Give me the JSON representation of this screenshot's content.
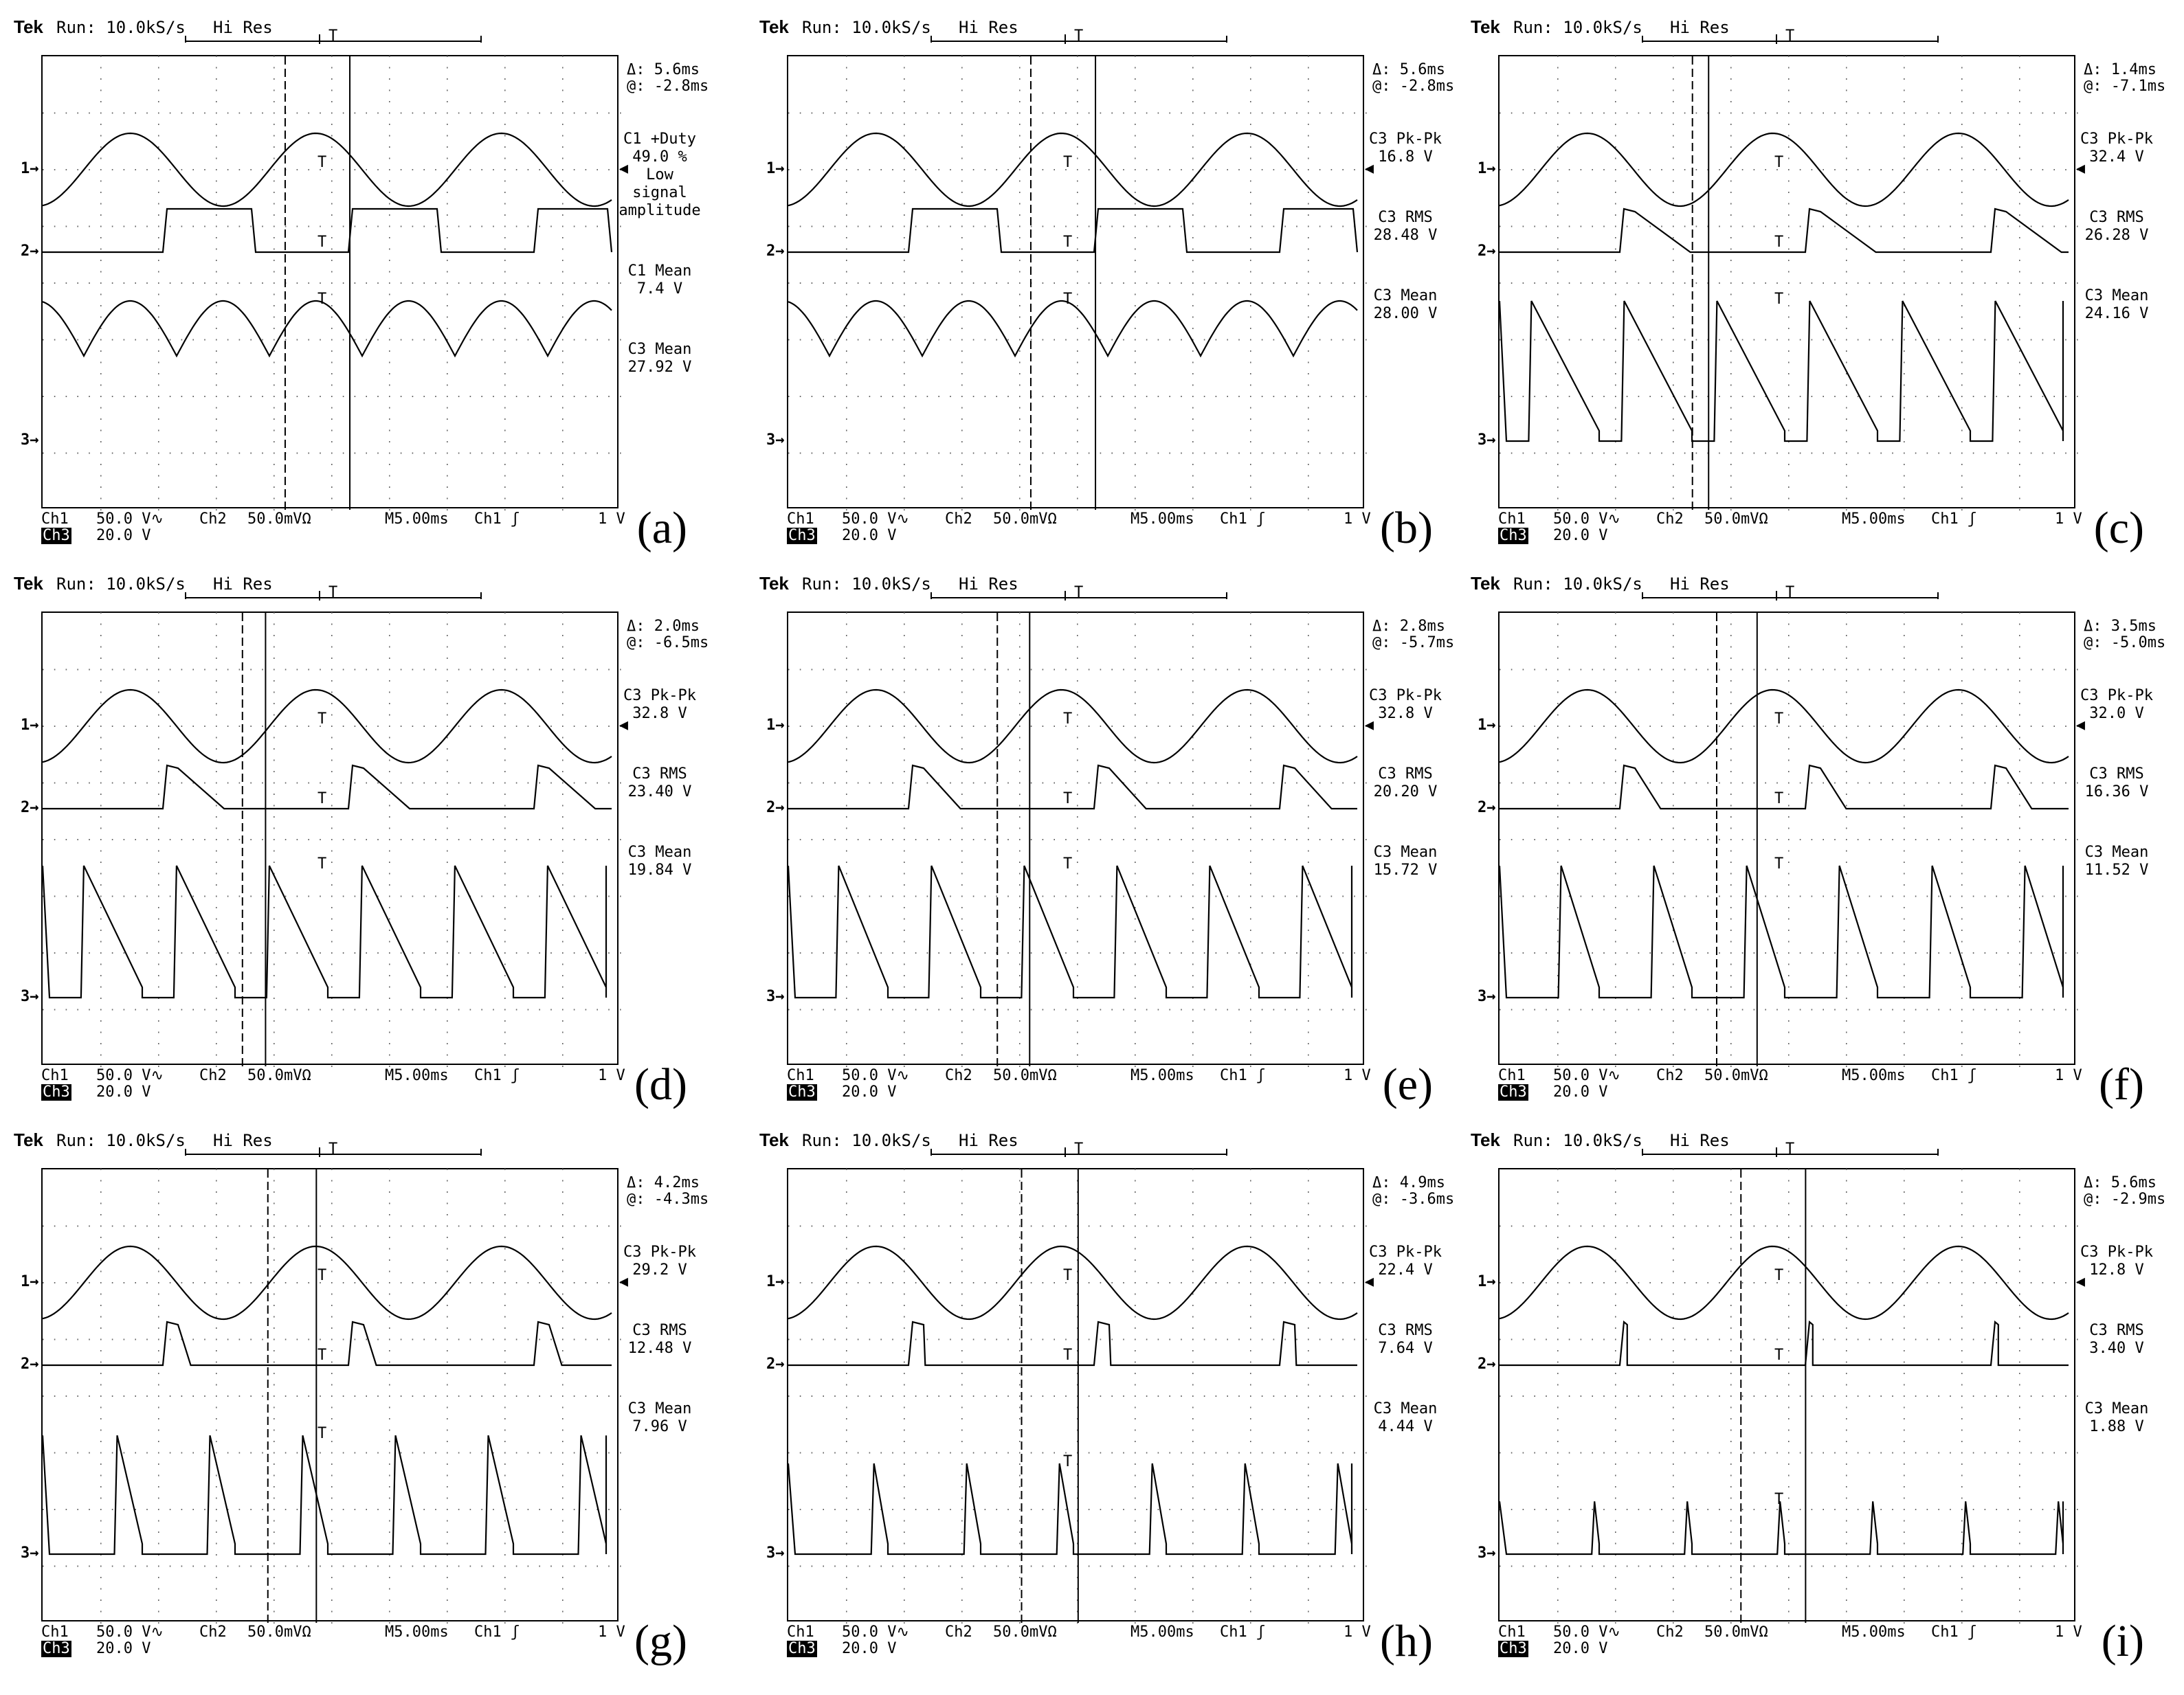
{
  "header": {
    "brand": "Tek",
    "run": "Run: 10.0kS/s",
    "mode": "Hi Res"
  },
  "footer": {
    "ch1": "Ch1",
    "ch1_scale": "50.0 V∿",
    "ch3": "Ch3",
    "ch3_scale": "20.0 V",
    "ch2": "Ch2",
    "ch2_scale": "50.0mVΩ",
    "timebase": "M5.00ms",
    "trigger": "Ch1 ʃ",
    "trigger_level": "1 V"
  },
  "channel_markers": [
    "1→",
    "2→",
    "3→"
  ],
  "trigger_glyph": "T",
  "chart_data": [
    {
      "label": "(a)",
      "type": "line",
      "delta": "Δ: 5.6ms",
      "at": "@: -2.8ms",
      "measurements": [
        {
          "name": "C1 +Duty",
          "value": "49.0 %",
          "note": "Low signal amplitude"
        },
        {
          "name": "C1 Mean",
          "value": "7.4 V"
        },
        {
          "name": "C3 Mean",
          "value": "27.92 V"
        }
      ],
      "c3_mode": "rectified",
      "c3_level": 0.85,
      "duty": 0.5
    },
    {
      "label": "(b)",
      "type": "line",
      "delta": "Δ: 5.6ms",
      "at": "@: -2.8ms",
      "measurements": [
        {
          "name": "C3 Pk-Pk",
          "value": "16.8 V"
        },
        {
          "name": "C3 RMS",
          "value": "28.48 V"
        },
        {
          "name": "C3 Mean",
          "value": "28.00 V"
        }
      ],
      "c3_mode": "rectified",
      "c3_level": 0.85,
      "duty": 0.5
    },
    {
      "label": "(c)",
      "type": "line",
      "delta": "Δ: 1.4ms",
      "at": "@: -7.1ms",
      "measurements": [
        {
          "name": "C3 Pk-Pk",
          "value": "32.4 V"
        },
        {
          "name": "C3 RMS",
          "value": "26.28 V"
        },
        {
          "name": "C3 Mean",
          "value": "24.16 V"
        }
      ],
      "c3_mode": "chopped",
      "c3_level": 0.85,
      "duty": 0.38
    },
    {
      "label": "(d)",
      "type": "line",
      "delta": "Δ: 2.0ms",
      "at": "@: -6.5ms",
      "measurements": [
        {
          "name": "C3 Pk-Pk",
          "value": "32.8 V"
        },
        {
          "name": "C3 RMS",
          "value": "23.40 V"
        },
        {
          "name": "C3 Mean",
          "value": "19.84 V"
        }
      ],
      "c3_mode": "chopped",
      "c3_level": 0.8,
      "duty": 0.33
    },
    {
      "label": "(e)",
      "type": "line",
      "delta": "Δ: 2.8ms",
      "at": "@: -5.7ms",
      "measurements": [
        {
          "name": "C3 Pk-Pk",
          "value": "32.8 V"
        },
        {
          "name": "C3 RMS",
          "value": "20.20 V"
        },
        {
          "name": "C3 Mean",
          "value": "15.72 V"
        }
      ],
      "c3_mode": "chopped",
      "c3_level": 0.8,
      "duty": 0.28
    },
    {
      "label": "(f)",
      "type": "line",
      "delta": "Δ: 3.5ms",
      "at": "@: -5.0ms",
      "measurements": [
        {
          "name": "C3 Pk-Pk",
          "value": "32.0 V"
        },
        {
          "name": "C3 RMS",
          "value": "16.36 V"
        },
        {
          "name": "C3 Mean",
          "value": "11.52 V"
        }
      ],
      "c3_mode": "chopped",
      "c3_level": 0.8,
      "duty": 0.22
    },
    {
      "label": "(g)",
      "type": "line",
      "delta": "Δ: 4.2ms",
      "at": "@: -4.3ms",
      "measurements": [
        {
          "name": "C3 Pk-Pk",
          "value": "29.2 V"
        },
        {
          "name": "C3 RMS",
          "value": "12.48 V"
        },
        {
          "name": "C3 Mean",
          "value": "7.96 V"
        }
      ],
      "c3_mode": "chopped",
      "c3_level": 0.72,
      "duty": 0.15
    },
    {
      "label": "(h)",
      "type": "line",
      "delta": "Δ: 4.9ms",
      "at": "@: -3.6ms",
      "measurements": [
        {
          "name": "C3 Pk-Pk",
          "value": "22.4 V"
        },
        {
          "name": "C3 RMS",
          "value": "7.64 V"
        },
        {
          "name": "C3 Mean",
          "value": "4.44 V"
        }
      ],
      "c3_mode": "chopped",
      "c3_level": 0.55,
      "duty": 0.09
    },
    {
      "label": "(i)",
      "type": "line",
      "delta": "Δ: 5.6ms",
      "at": "@: -2.9ms",
      "measurements": [
        {
          "name": "C3 Pk-Pk",
          "value": "12.8 V"
        },
        {
          "name": "C3 RMS",
          "value": "3.40 V"
        },
        {
          "name": "C3 Mean",
          "value": "1.88 V"
        }
      ],
      "c3_mode": "chopped",
      "c3_level": 0.32,
      "duty": 0.04
    }
  ]
}
